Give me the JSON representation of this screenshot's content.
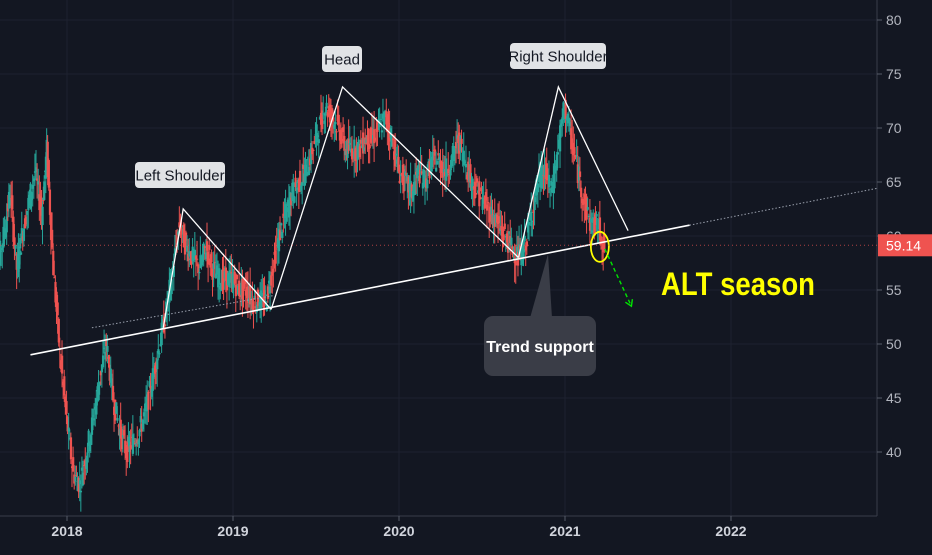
{
  "chart_data": {
    "type": "candlestick",
    "title": "",
    "xlabel": "",
    "ylabel": "",
    "ylim": [
      34.5,
      81.5
    ],
    "y_ticks": [
      40,
      45,
      50,
      55,
      60,
      65,
      70,
      75,
      80
    ],
    "x_ticks": [
      "2018",
      "2019",
      "2020",
      "2021",
      "2022"
    ],
    "x_tick_years": [
      2018.0,
      2019.0,
      2020.0,
      2021.0,
      2022.0
    ],
    "last_price": "59.14",
    "grid": true,
    "colors": {
      "background": "#131722",
      "grid": "#1e2230",
      "up": "#26a69a",
      "down": "#ef5350",
      "price_label": "#ef5350",
      "annotation_text": "#ffff00",
      "arrow": "#00e600",
      "circle": "#ffff00"
    },
    "close_series": [
      [
        2017.55,
        55
      ],
      [
        2017.58,
        57
      ],
      [
        2017.62,
        60
      ],
      [
        2017.66,
        64
      ],
      [
        2017.7,
        57
      ],
      [
        2017.73,
        60
      ],
      [
        2017.77,
        63
      ],
      [
        2017.81,
        66
      ],
      [
        2017.85,
        62
      ],
      [
        2017.88,
        68
      ],
      [
        2017.92,
        57
      ],
      [
        2017.96,
        49
      ],
      [
        2018.0,
        43
      ],
      [
        2018.04,
        38
      ],
      [
        2018.08,
        37
      ],
      [
        2018.12,
        40
      ],
      [
        2018.16,
        43
      ],
      [
        2018.2,
        47
      ],
      [
        2018.24,
        50
      ],
      [
        2018.28,
        45
      ],
      [
        2018.32,
        42
      ],
      [
        2018.36,
        40
      ],
      [
        2018.4,
        41
      ],
      [
        2018.44,
        42
      ],
      [
        2018.48,
        44
      ],
      [
        2018.52,
        47
      ],
      [
        2018.56,
        50
      ],
      [
        2018.6,
        53
      ],
      [
        2018.64,
        57
      ],
      [
        2018.68,
        61
      ],
      [
        2018.72,
        59
      ],
      [
        2018.76,
        58
      ],
      [
        2018.8,
        57
      ],
      [
        2018.84,
        59
      ],
      [
        2018.88,
        57
      ],
      [
        2018.92,
        56
      ],
      [
        2018.96,
        56
      ],
      [
        2019.0,
        56
      ],
      [
        2019.04,
        55
      ],
      [
        2019.08,
        55
      ],
      [
        2019.12,
        54
      ],
      [
        2019.16,
        54
      ],
      [
        2019.2,
        54
      ],
      [
        2019.24,
        57
      ],
      [
        2019.28,
        60
      ],
      [
        2019.32,
        62
      ],
      [
        2019.36,
        64
      ],
      [
        2019.4,
        65
      ],
      [
        2019.44,
        66
      ],
      [
        2019.48,
        68
      ],
      [
        2019.52,
        70
      ],
      [
        2019.56,
        72
      ],
      [
        2019.6,
        71
      ],
      [
        2019.64,
        70
      ],
      [
        2019.68,
        68
      ],
      [
        2019.72,
        68
      ],
      [
        2019.76,
        68
      ],
      [
        2019.8,
        69
      ],
      [
        2019.84,
        69
      ],
      [
        2019.88,
        70
      ],
      [
        2019.92,
        71
      ],
      [
        2019.96,
        69
      ],
      [
        2020.0,
        66
      ],
      [
        2020.04,
        65
      ],
      [
        2020.08,
        64
      ],
      [
        2020.12,
        66
      ],
      [
        2020.16,
        65
      ],
      [
        2020.2,
        67
      ],
      [
        2020.24,
        67
      ],
      [
        2020.28,
        66
      ],
      [
        2020.32,
        67
      ],
      [
        2020.36,
        69
      ],
      [
        2020.4,
        67
      ],
      [
        2020.44,
        65
      ],
      [
        2020.48,
        64
      ],
      [
        2020.52,
        63
      ],
      [
        2020.56,
        62
      ],
      [
        2020.6,
        61
      ],
      [
        2020.64,
        60
      ],
      [
        2020.68,
        59
      ],
      [
        2020.72,
        58
      ],
      [
        2020.76,
        59
      ],
      [
        2020.8,
        62
      ],
      [
        2020.84,
        65
      ],
      [
        2020.88,
        66
      ],
      [
        2020.92,
        64
      ],
      [
        2020.96,
        68
      ],
      [
        2021.0,
        72
      ],
      [
        2021.04,
        69
      ],
      [
        2021.08,
        66
      ],
      [
        2021.12,
        63
      ],
      [
        2021.16,
        61
      ],
      [
        2021.2,
        61
      ],
      [
        2021.24,
        59
      ]
    ],
    "annotations": {
      "left_shoulder": "Left Shoulder",
      "head": "Head",
      "right_shoulder": "Right Shoulder",
      "trend_support": "Trend support",
      "alt_season": "ALT season"
    },
    "trendline": {
      "from": [
        2017.78,
        49.0
      ],
      "to": [
        2021.75,
        61.0
      ]
    }
  }
}
